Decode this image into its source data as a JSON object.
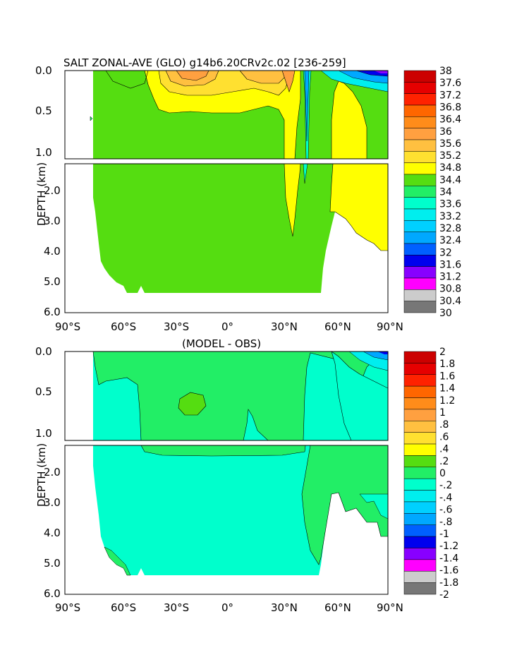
{
  "chart_data": [
    {
      "type": "heatmap",
      "title": "SALT ZONAL-AVE (GLO) g14b6.20CRv2c.02 [236-259]",
      "ylabel": "DEPTH (km)",
      "xlabel": "",
      "x_ticks": [
        "90°S",
        "60°S",
        "30°S",
        "0°",
        "30°N",
        "60°N",
        "90°N"
      ],
      "y_ticks_upper": [
        "0.0",
        "0.5",
        "1.0"
      ],
      "y_ticks_lower": [
        "2.0",
        "3.0",
        "4.0",
        "5.0",
        "6.0"
      ],
      "xlim": [
        -90,
        90
      ],
      "ylim_km": [
        0,
        6
      ],
      "colorbar": {
        "labels": [
          "38",
          "37.6",
          "37.2",
          "36.8",
          "36.4",
          "36",
          "35.6",
          "35.2",
          "34.8",
          "34.4",
          "34",
          "33.6",
          "33.2",
          "32.8",
          "32.4",
          "32",
          "31.6",
          "31.2",
          "30.8",
          "30.4",
          "30"
        ],
        "colors": [
          "#cc0000",
          "#e60000",
          "#ff2200",
          "#ff6600",
          "#ff8c1a",
          "#ffa040",
          "#ffc040",
          "#ffe030",
          "#ffff00",
          "#55dd11",
          "#22ee66",
          "#00ffcc",
          "#00eeee",
          "#00d0ff",
          "#00a8ff",
          "#0060ff",
          "#0000ee",
          "#8800ff",
          "#ff00ff",
          "#cccccc",
          "#777777"
        ]
      }
    },
    {
      "type": "heatmap",
      "title": "(MODEL - OBS)",
      "ylabel": "DEPTH (km)",
      "xlabel": "",
      "x_ticks": [
        "90°S",
        "60°S",
        "30°S",
        "0°",
        "30°N",
        "60°N",
        "90°N"
      ],
      "y_ticks_upper": [
        "0.0",
        "0.5",
        "1.0"
      ],
      "y_ticks_lower": [
        "2.0",
        "3.0",
        "4.0",
        "5.0",
        "6.0"
      ],
      "xlim": [
        -90,
        90
      ],
      "ylim_km": [
        0,
        6
      ],
      "colorbar": {
        "labels": [
          "2",
          "1.8",
          "1.6",
          "1.4",
          "1.2",
          "1",
          ".8",
          ".6",
          ".4",
          ".2",
          "0",
          "-.2",
          "-.4",
          "-.6",
          "-.8",
          "-1",
          "-1.2",
          "-1.4",
          "-1.6",
          "-1.8",
          "-2"
        ],
        "colors": [
          "#cc0000",
          "#e60000",
          "#ff2200",
          "#ff6600",
          "#ff8c1a",
          "#ffa040",
          "#ffc040",
          "#ffe030",
          "#ffff00",
          "#55dd11",
          "#22ee66",
          "#00ffcc",
          "#00eeee",
          "#00d0ff",
          "#00a8ff",
          "#0060ff",
          "#0000ee",
          "#8800ff",
          "#ff00ff",
          "#cccccc",
          "#777777"
        ]
      }
    }
  ]
}
